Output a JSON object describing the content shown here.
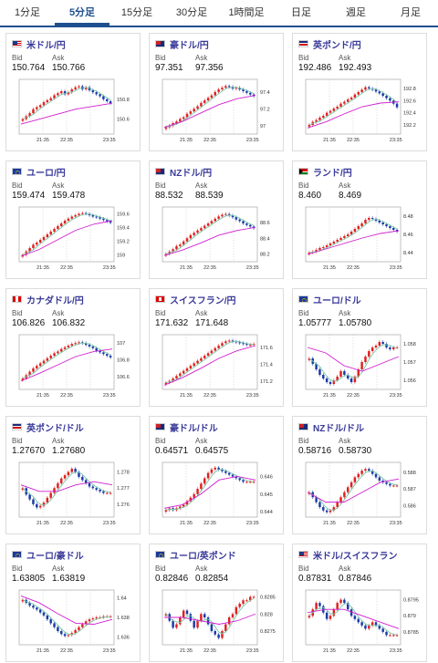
{
  "tabs": [
    {
      "label": "1分足",
      "active": false
    },
    {
      "label": "5分足",
      "active": true
    },
    {
      "label": "15分足",
      "active": false
    },
    {
      "label": "30分足",
      "active": false
    },
    {
      "label": "1時間足",
      "active": false
    },
    {
      "label": "日足",
      "active": false
    },
    {
      "label": "週足",
      "active": false
    },
    {
      "label": "月足",
      "active": false
    }
  ],
  "bid_label": "Bid",
  "ask_label": "Ask",
  "cards": [
    {
      "pair": "米ドル/円",
      "flag": "us",
      "bid": "150.764",
      "ask": "150.766",
      "chart_data": {
        "type": "candlestick",
        "x_ticks": [
          "21:35",
          "22:35",
          "23:35"
        ],
        "y_ticks": [
          "150.8",
          "150.6"
        ],
        "ylim": [
          150.45,
          151.0
        ],
        "close": [
          150.6,
          150.63,
          150.66,
          150.7,
          150.72,
          150.74,
          150.77,
          150.79,
          150.81,
          150.84,
          150.86,
          150.88,
          150.85,
          150.87,
          150.9,
          150.92,
          150.93,
          150.9,
          150.92,
          150.89,
          150.87,
          150.85,
          150.83,
          150.8,
          150.78,
          150.76
        ],
        "ma": [
          150.55,
          150.6,
          150.65,
          150.7,
          150.73,
          150.76
        ]
      }
    },
    {
      "pair": "豪ドル/円",
      "flag": "au",
      "bid": "97.351",
      "ask": "97.356",
      "chart_data": {
        "type": "candlestick",
        "x_ticks": [
          "21:35",
          "22:35",
          "23:35"
        ],
        "y_ticks": [
          "97.4",
          "97.2",
          "97"
        ],
        "ylim": [
          96.9,
          97.55
        ],
        "close": [
          96.98,
          97.0,
          97.03,
          97.05,
          97.08,
          97.1,
          97.14,
          97.17,
          97.2,
          97.23,
          97.27,
          97.3,
          97.33,
          97.36,
          97.4,
          97.43,
          97.45,
          97.47,
          97.46,
          97.44,
          97.45,
          97.43,
          97.41,
          97.39,
          97.37,
          97.35
        ],
        "ma": [
          96.98,
          97.05,
          97.15,
          97.25,
          97.32,
          97.36
        ]
      }
    },
    {
      "pair": "英ポンド/円",
      "flag": "gb",
      "bid": "192.486",
      "ask": "192.493",
      "chart_data": {
        "type": "candlestick",
        "x_ticks": [
          "21:35",
          "22:35",
          "23:35"
        ],
        "y_ticks": [
          "192.8",
          "192.6",
          "192.4",
          "192.2"
        ],
        "ylim": [
          192.05,
          192.95
        ],
        "close": [
          192.2,
          192.25,
          192.28,
          192.32,
          192.35,
          192.4,
          192.43,
          192.47,
          192.5,
          192.55,
          192.58,
          192.62,
          192.65,
          192.7,
          192.74,
          192.78,
          192.82,
          192.8,
          192.78,
          192.75,
          192.72,
          192.68,
          192.64,
          192.6,
          192.55,
          192.49
        ],
        "ma": [
          192.15,
          192.25,
          192.38,
          192.5,
          192.56,
          192.58
        ]
      }
    },
    {
      "pair": "ユーロ/円",
      "flag": "eu",
      "bid": "159.474",
      "ask": "159.478",
      "chart_data": {
        "type": "candlestick",
        "x_ticks": [
          "21:35",
          "22:35",
          "23:35"
        ],
        "y_ticks": [
          "159.6",
          "159.4",
          "159.2",
          "159"
        ],
        "ylim": [
          158.9,
          159.7
        ],
        "close": [
          159.0,
          159.05,
          159.1,
          159.15,
          159.18,
          159.22,
          159.26,
          159.3,
          159.34,
          159.38,
          159.42,
          159.46,
          159.5,
          159.53,
          159.56,
          159.58,
          159.6,
          159.61,
          159.6,
          159.58,
          159.56,
          159.55,
          159.53,
          159.51,
          159.49,
          159.47
        ],
        "ma": [
          158.98,
          159.08,
          159.22,
          159.36,
          159.45,
          159.5
        ]
      }
    },
    {
      "pair": "NZドル/円",
      "flag": "nz",
      "bid": "88.532",
      "ask": "88.539",
      "chart_data": {
        "type": "candlestick",
        "x_ticks": [
          "21:35",
          "22:35",
          "23:35"
        ],
        "y_ticks": [
          "88.6",
          "88.4",
          "88.2"
        ],
        "ylim": [
          88.1,
          88.8
        ],
        "close": [
          88.2,
          88.23,
          88.26,
          88.3,
          88.32,
          88.36,
          88.4,
          88.44,
          88.47,
          88.5,
          88.53,
          88.56,
          88.59,
          88.62,
          88.65,
          88.68,
          88.7,
          88.71,
          88.69,
          88.67,
          88.64,
          88.62,
          88.59,
          88.57,
          88.55,
          88.53
        ],
        "ma": [
          88.18,
          88.25,
          88.34,
          88.44,
          88.5,
          88.54
        ]
      }
    },
    {
      "pair": "ランド/円",
      "flag": "za",
      "bid": "8.460",
      "ask": "8.469",
      "chart_data": {
        "type": "candlestick",
        "x_ticks": [
          "21:35",
          "22:35",
          "23:35"
        ],
        "y_ticks": [
          "8.48",
          "8.46",
          "8.44"
        ],
        "ylim": [
          8.43,
          8.49
        ],
        "close": [
          8.44,
          8.441,
          8.443,
          8.445,
          8.446,
          8.448,
          8.45,
          8.452,
          8.454,
          8.456,
          8.458,
          8.46,
          8.463,
          8.466,
          8.469,
          8.472,
          8.476,
          8.478,
          8.477,
          8.475,
          8.473,
          8.471,
          8.469,
          8.467,
          8.465,
          8.463
        ],
        "ma": [
          8.438,
          8.444,
          8.45,
          8.456,
          8.461,
          8.464
        ]
      }
    },
    {
      "pair": "カナダドル/円",
      "flag": "ca",
      "bid": "106.826",
      "ask": "106.832",
      "chart_data": {
        "type": "candlestick",
        "x_ticks": [
          "21:35",
          "22:35",
          "23:35"
        ],
        "y_ticks": [
          "107",
          "106.8",
          "106.6"
        ],
        "ylim": [
          106.45,
          107.1
        ],
        "close": [
          106.58,
          106.62,
          106.66,
          106.7,
          106.73,
          106.76,
          106.79,
          106.82,
          106.85,
          106.88,
          106.9,
          106.93,
          106.95,
          106.97,
          106.99,
          107.0,
          107.01,
          107.0,
          106.98,
          106.96,
          106.94,
          106.91,
          106.89,
          106.87,
          106.85,
          106.83
        ],
        "ma": [
          106.55,
          106.64,
          106.74,
          106.84,
          106.9,
          106.93
        ]
      }
    },
    {
      "pair": "スイスフラン/円",
      "flag": "ch",
      "bid": "171.632",
      "ask": "171.648",
      "chart_data": {
        "type": "candlestick",
        "x_ticks": [
          "21:35",
          "22:35",
          "23:35"
        ],
        "y_ticks": [
          "171.6",
          "171.4",
          "171.2"
        ],
        "ylim": [
          171.1,
          171.75
        ],
        "close": [
          171.18,
          171.2,
          171.23,
          171.26,
          171.29,
          171.32,
          171.35,
          171.38,
          171.41,
          171.44,
          171.47,
          171.5,
          171.53,
          171.56,
          171.59,
          171.62,
          171.65,
          171.67,
          171.68,
          171.67,
          171.66,
          171.65,
          171.64,
          171.63,
          171.63,
          171.64
        ],
        "ma": [
          171.15,
          171.24,
          171.35,
          171.47,
          171.56,
          171.62
        ]
      }
    },
    {
      "pair": "ユーロ/ドル",
      "flag": "eu",
      "bid": "1.05777",
      "ask": "1.05780",
      "chart_data": {
        "type": "candlestick",
        "x_ticks": [
          "21:35",
          "22:35",
          "23:35"
        ],
        "y_ticks": [
          "1.058",
          "1.057",
          "1.056"
        ],
        "ylim": [
          1.0555,
          1.0585
        ],
        "close": [
          1.0572,
          1.0569,
          1.0566,
          1.0563,
          1.0561,
          1.0559,
          1.0558,
          1.056,
          1.0562,
          1.0565,
          1.0563,
          1.0561,
          1.0559,
          1.0562,
          1.0566,
          1.057,
          1.0573,
          1.0576,
          1.0578,
          1.0579,
          1.0581,
          1.058,
          1.0578,
          1.0577,
          1.0578,
          1.0578
        ],
        "ma": [
          1.0578,
          1.0575,
          1.0568,
          1.0565,
          1.0569,
          1.0573
        ]
      }
    },
    {
      "pair": "英ポンド/ドル",
      "flag": "gb",
      "bid": "1.27670",
      "ask": "1.27680",
      "chart_data": {
        "type": "candlestick",
        "x_ticks": [
          "21:35",
          "22:35",
          "23:35"
        ],
        "y_ticks": [
          "1.278",
          "1.277",
          "1.276"
        ],
        "ylim": [
          1.2752,
          1.2786
        ],
        "close": [
          1.277,
          1.2766,
          1.2763,
          1.276,
          1.2758,
          1.2759,
          1.2761,
          1.2764,
          1.2767,
          1.277,
          1.2773,
          1.2776,
          1.2778,
          1.278,
          1.2782,
          1.278,
          1.2777,
          1.2775,
          1.2773,
          1.2771,
          1.277,
          1.2769,
          1.2768,
          1.2767,
          1.2767,
          1.2767
        ],
        "ma": [
          1.2772,
          1.2768,
          1.2768,
          1.2772,
          1.2774,
          1.2772
        ]
      }
    },
    {
      "pair": "豪ドル/ドル",
      "flag": "au",
      "bid": "0.64571",
      "ask": "0.64575",
      "chart_data": {
        "type": "candlestick",
        "x_ticks": [
          "21:35",
          "22:35",
          "23:35"
        ],
        "y_ticks": [
          "0.646",
          "0.645",
          "0.644"
        ],
        "ylim": [
          0.6437,
          0.6468
        ],
        "close": [
          0.6441,
          0.6442,
          0.6441,
          0.6442,
          0.6443,
          0.6444,
          0.6446,
          0.6448,
          0.645,
          0.6453,
          0.6456,
          0.6459,
          0.6462,
          0.6464,
          0.6465,
          0.6464,
          0.6463,
          0.6462,
          0.6461,
          0.646,
          0.6459,
          0.6458,
          0.6457,
          0.6457,
          0.6457,
          0.6457
        ],
        "ma": [
          0.6442,
          0.6444,
          0.645,
          0.6458,
          0.646,
          0.6458
        ]
      }
    },
    {
      "pair": "NZドル/ドル",
      "flag": "nz",
      "bid": "0.58716",
      "ask": "0.58730",
      "chart_data": {
        "type": "candlestick",
        "x_ticks": [
          "21:35",
          "22:35",
          "23:35"
        ],
        "y_ticks": [
          "0.588",
          "0.587",
          "0.586"
        ],
        "ylim": [
          0.5853,
          0.5886
        ],
        "close": [
          0.5868,
          0.5865,
          0.5862,
          0.5859,
          0.5857,
          0.5856,
          0.5857,
          0.5859,
          0.5862,
          0.5865,
          0.5868,
          0.5871,
          0.5874,
          0.5877,
          0.5879,
          0.5881,
          0.5882,
          0.5881,
          0.5879,
          0.5877,
          0.5875,
          0.5874,
          0.5873,
          0.5872,
          0.5872,
          0.5872
        ],
        "ma": [
          0.5868,
          0.5862,
          0.5862,
          0.5868,
          0.5874,
          0.5876
        ]
      }
    },
    {
      "pair": "ユーロ/豪ドル",
      "flag": "eu",
      "bid": "1.63805",
      "ask": "1.63819",
      "chart_data": {
        "type": "candlestick",
        "x_ticks": [
          "21:35",
          "22:35",
          "23:35"
        ],
        "y_ticks": [
          "1.64",
          "1.638",
          "1.636"
        ],
        "ylim": [
          1.6352,
          1.6408
        ],
        "close": [
          1.6398,
          1.6395,
          1.6392,
          1.639,
          1.6388,
          1.6385,
          1.6382,
          1.6378,
          1.6374,
          1.637,
          1.6366,
          1.6363,
          1.6361,
          1.6362,
          1.6364,
          1.6367,
          1.637,
          1.6373,
          1.6376,
          1.6378,
          1.6379,
          1.638,
          1.638,
          1.6381,
          1.6381,
          1.6381
        ],
        "ma": [
          1.6402,
          1.6395,
          1.6384,
          1.6374,
          1.6373,
          1.6378
        ]
      }
    },
    {
      "pair": "ユーロ/英ポンド",
      "flag": "eu",
      "bid": "0.82846",
      "ask": "0.82854",
      "chart_data": {
        "type": "candlestick",
        "x_ticks": [
          "21:35",
          "22:35",
          "23:35"
        ],
        "y_ticks": [
          "0.8285",
          "0.828",
          "0.8275"
        ],
        "ylim": [
          0.8271,
          0.8287
        ],
        "close": [
          0.828,
          0.8278,
          0.8276,
          0.8277,
          0.8279,
          0.8281,
          0.828,
          0.8278,
          0.8276,
          0.8278,
          0.828,
          0.8279,
          0.8277,
          0.8275,
          0.8274,
          0.8273,
          0.8275,
          0.8277,
          0.8279,
          0.828,
          0.8282,
          0.8283,
          0.8284,
          0.8284,
          0.8285,
          0.8285
        ],
        "ma": [
          0.8279,
          0.8279,
          0.8278,
          0.8277,
          0.8278,
          0.828
        ]
      }
    },
    {
      "pair": "米ドル/スイスフラン",
      "flag": "us",
      "bid": "0.87831",
      "ask": "0.87846",
      "chart_data": {
        "type": "candlestick",
        "x_ticks": [
          "21:35",
          "22:35",
          "23:35"
        ],
        "y_ticks": [
          "0.8795",
          "0.879",
          "0.8785"
        ],
        "ylim": [
          0.8781,
          0.8798
        ],
        "close": [
          0.879,
          0.8792,
          0.8794,
          0.8793,
          0.8791,
          0.8789,
          0.879,
          0.8792,
          0.8794,
          0.8795,
          0.8794,
          0.8792,
          0.879,
          0.8789,
          0.8788,
          0.8787,
          0.8786,
          0.8787,
          0.8788,
          0.8787,
          0.8786,
          0.8785,
          0.8784,
          0.8784,
          0.8784,
          0.8784
        ],
        "ma": [
          0.8791,
          0.8792,
          0.8792,
          0.879,
          0.8788,
          0.8786
        ]
      }
    }
  ],
  "colors": {
    "up": "#e02020",
    "down": "#1a3aa8",
    "ma_fast": "#78c8a8",
    "ma_slow": "#d020d0",
    "accent": "#1f4f8f"
  }
}
